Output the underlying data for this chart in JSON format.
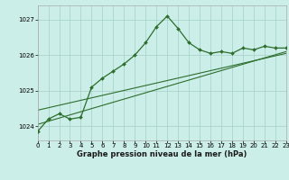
{
  "title": "Graphe pression niveau de la mer (hPa)",
  "bg_color": "#cceee8",
  "grid_color": "#aad4cc",
  "line_color": "#2d6e2d",
  "border_color": "#aaaaaa",
  "xmin": 0,
  "xmax": 23,
  "ymin": 1023.6,
  "ymax": 1027.4,
  "yticks": [
    1024,
    1025,
    1026,
    1027
  ],
  "xticks": [
    0,
    1,
    2,
    3,
    4,
    5,
    6,
    7,
    8,
    9,
    10,
    11,
    12,
    13,
    14,
    15,
    16,
    17,
    18,
    19,
    20,
    21,
    22,
    23
  ],
  "main_x": [
    0,
    1,
    2,
    3,
    4,
    5,
    6,
    7,
    8,
    9,
    10,
    11,
    12,
    13,
    14,
    15,
    16,
    17,
    18,
    19,
    20,
    21,
    22,
    23
  ],
  "main_y": [
    1023.85,
    1024.2,
    1024.35,
    1024.2,
    1024.25,
    1025.1,
    1025.35,
    1025.55,
    1025.75,
    1026.0,
    1026.35,
    1026.8,
    1027.1,
    1026.75,
    1026.35,
    1026.15,
    1026.05,
    1026.1,
    1026.05,
    1026.2,
    1026.15,
    1026.25,
    1026.2,
    1026.2
  ],
  "trend1_x": [
    0,
    23
  ],
  "trend1_y": [
    1024.05,
    1026.1
  ],
  "trend2_x": [
    0,
    23
  ],
  "trend2_y": [
    1024.45,
    1026.05
  ],
  "xlabel_fontsize": 6.0,
  "tick_fontsize": 5.0
}
